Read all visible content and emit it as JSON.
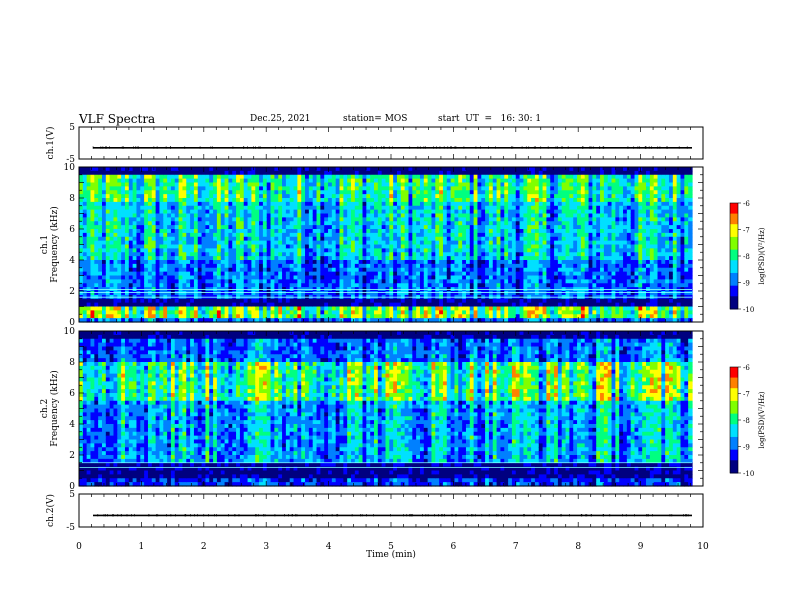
{
  "header": {
    "title": "VLF Spectra",
    "date": "Dec.25, 2021",
    "station": "station= MOS",
    "start": "start  UT  =   16: 30: 1"
  },
  "chart_data": [
    {
      "type": "line",
      "name": "ch1-waveform",
      "ylabel": "ch.1(V)",
      "ylim": [
        -5,
        5
      ],
      "yticks": [
        5,
        -5
      ],
      "xlim": [
        0,
        10
      ],
      "description_values": {
        "level": -1.5
      }
    },
    {
      "type": "heatmap",
      "name": "ch1-spectrogram",
      "ylabel_lines": [
        "ch.1",
        "Frequency (kHz)"
      ],
      "ylim": [
        0,
        10
      ],
      "yticks": [
        0,
        2,
        4,
        6,
        8,
        10
      ],
      "xlim": [
        0,
        9.85
      ],
      "colorbar": {
        "label": "log(PSD)(V²/Hz)",
        "range": [
          -10,
          -6
        ],
        "ticks": [
          -6,
          -7,
          -8,
          -9,
          -10
        ]
      },
      "bands_khz": {
        "strong_low_band": [
          0.2,
          0.9
        ],
        "horizontal_lines": [
          1.6,
          1.9,
          2.1
        ]
      }
    },
    {
      "type": "heatmap",
      "name": "ch2-spectrogram",
      "ylabel_lines": [
        "ch.2",
        "Frequency (kHz)"
      ],
      "ylim": [
        0,
        10
      ],
      "yticks": [
        0,
        2,
        4,
        6,
        8,
        10
      ],
      "xlim": [
        0,
        9.85
      ],
      "colorbar": {
        "label": "log(PSD)(V²/Hz)",
        "range": [
          -10,
          -6
        ],
        "ticks": [
          -6,
          -7,
          -8,
          -9,
          -10
        ]
      },
      "bands_khz": {
        "strong_band": [
          5.5,
          8.0
        ],
        "horizontal_lines": [
          1.2,
          1.5
        ]
      }
    },
    {
      "type": "line",
      "name": "ch2-waveform",
      "ylabel": "ch.2(V)",
      "ylim": [
        -5,
        5
      ],
      "yticks": [
        5,
        -5
      ],
      "xlim": [
        0,
        10
      ],
      "description_values": {
        "level": -1.5
      }
    }
  ],
  "xaxis": {
    "label": "Time (min)",
    "ticks": [
      0,
      1,
      2,
      3,
      4,
      5,
      6,
      7,
      8,
      9,
      10
    ]
  },
  "colormap": [
    "#000080",
    "#0000ff",
    "#0080ff",
    "#00e0ff",
    "#00ff80",
    "#80ff00",
    "#ffff00",
    "#ff8000",
    "#ff0000",
    "#ffffff"
  ]
}
